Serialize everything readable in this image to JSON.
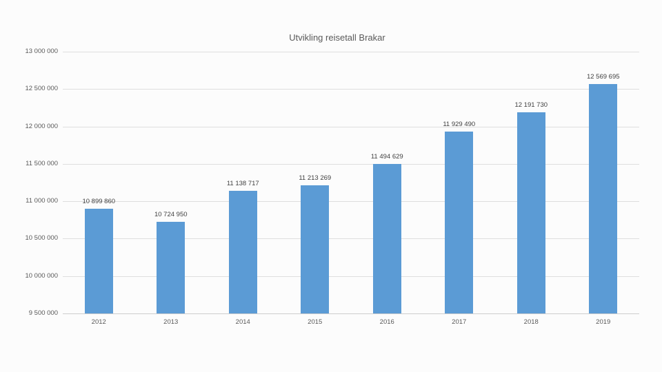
{
  "chart_data": {
    "type": "bar",
    "title": "Utvikling reisetall Brakar",
    "categories": [
      "2012",
      "2013",
      "2014",
      "2015",
      "2016",
      "2017",
      "2018",
      "2019"
    ],
    "values": [
      10899860,
      10724950,
      11138717,
      11213269,
      11494629,
      11929490,
      12191730,
      12569695
    ],
    "value_labels": [
      "10 899 860",
      "10 724 950",
      "11 138 717",
      "11 213 269",
      "11 494 629",
      "11 929 490",
      "12 191 730",
      "12 569 695"
    ],
    "y_ticks": [
      {
        "label": "13 000 000",
        "value": 13000000
      },
      {
        "label": "12 500 000",
        "value": 12500000
      },
      {
        "label": "12 000 000",
        "value": 12000000
      },
      {
        "label": "11 500 000",
        "value": 11500000
      },
      {
        "label": "11 000 000",
        "value": 11000000
      },
      {
        "label": "10 500 000",
        "value": 10500000
      },
      {
        "label": "10 000 000",
        "value": 10000000
      },
      {
        "label": "9 500 000",
        "value": 9500000
      }
    ],
    "ylim": [
      9500000,
      13000000
    ],
    "xlabel": "",
    "ylabel": "",
    "grid": true,
    "legend": false,
    "colors": {
      "bar": "#5b9bd5",
      "gridline": "#dedede",
      "axis_line": "#cdcdcd",
      "title_text": "#595959",
      "tick_text": "#595959",
      "data_label_text": "#404040",
      "background": "#fcfcfc"
    }
  }
}
